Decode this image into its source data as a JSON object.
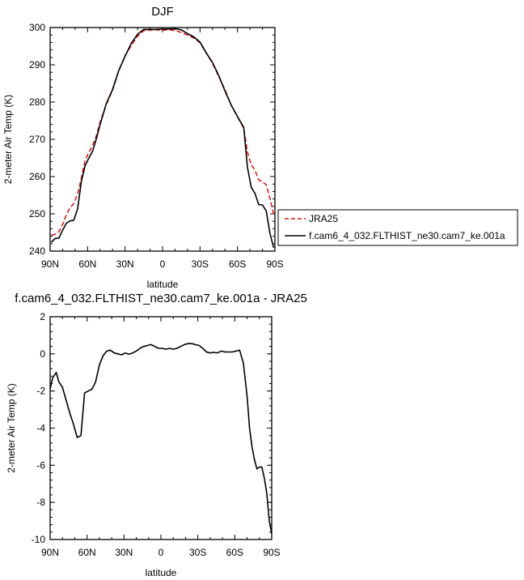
{
  "chart_data": [
    {
      "type": "line",
      "title": "DJF",
      "xlabel": "latitude",
      "ylabel": "2-meter Air Temp (K)",
      "xlim": [
        90,
        -90
      ],
      "ylim": [
        240,
        300
      ],
      "xticks": [
        90,
        60,
        30,
        0,
        -30,
        -60,
        -90
      ],
      "xtick_labels": [
        "90N",
        "60N",
        "30N",
        "0",
        "30S",
        "60S",
        "90S"
      ],
      "yticks": [
        240,
        250,
        260,
        270,
        280,
        290,
        300
      ],
      "ytick_labels": [
        "240",
        "250",
        "260",
        "270",
        "280",
        "290",
        "300"
      ],
      "legend_position": "right",
      "series": [
        {
          "name": "JRA25",
          "color": "#e41a1c",
          "dash": "dashed",
          "x": [
            89,
            86,
            83,
            80,
            77,
            74,
            71,
            68,
            65,
            62,
            59,
            56,
            53,
            50,
            45,
            40,
            35,
            30,
            25,
            20,
            15,
            10,
            5,
            0,
            -5,
            -10,
            -15,
            -20,
            -25,
            -30,
            -35,
            -40,
            -45,
            -50,
            -55,
            -60,
            -65,
            -68,
            -71,
            -74,
            -77,
            -80,
            -83,
            -86,
            -89
          ],
          "y": [
            244.3,
            244.5,
            245.2,
            247.1,
            249.8,
            251.6,
            252.8,
            255.4,
            259.6,
            264.4,
            266.5,
            268.3,
            270.9,
            274.6,
            279.4,
            283.2,
            288.4,
            292.5,
            295.2,
            297.7,
            299.2,
            299.3,
            299.4,
            299.3,
            299.4,
            299.2,
            298.7,
            298.0,
            297.2,
            295.9,
            293.2,
            290.4,
            286.9,
            283.3,
            279.2,
            276.0,
            273.0,
            266.6,
            263.2,
            261.7,
            259.1,
            258.6,
            257.8,
            254.2,
            249.8
          ]
        },
        {
          "name": "f.cam6_4_032.FLTHIST_ne30.cam7_ke.001a",
          "color": "#000000",
          "dash": "solid",
          "x": [
            89,
            86,
            83,
            80,
            77,
            74,
            71,
            68,
            65,
            62,
            59,
            56,
            53,
            50,
            45,
            40,
            35,
            30,
            25,
            20,
            15,
            10,
            5,
            0,
            -5,
            -10,
            -15,
            -20,
            -25,
            -30,
            -35,
            -40,
            -45,
            -50,
            -55,
            -60,
            -65,
            -68,
            -71,
            -74,
            -77,
            -80,
            -83,
            -86,
            -89
          ],
          "y": [
            242.4,
            243.4,
            243.5,
            245.6,
            247.5,
            248.1,
            248.3,
            251.4,
            258.7,
            262.9,
            265.0,
            266.8,
            270.1,
            274.0,
            279.6,
            283.4,
            288.5,
            292.3,
            295.8,
            298.2,
            299.5,
            299.5,
            299.5,
            299.6,
            299.6,
            299.7,
            299.4,
            298.4,
            297.5,
            296.1,
            293.2,
            290.6,
            287.1,
            283.0,
            279.2,
            276.1,
            273.2,
            262.5,
            257.1,
            255.5,
            252.5,
            252.4,
            250.8,
            244.8,
            240.9
          ]
        }
      ]
    },
    {
      "type": "line",
      "title": "f.cam6_4_032.FLTHIST_ne30.cam7_ke.001a - JRA25",
      "xlabel": "latitude",
      "ylabel": "2-meter Air Temp (K)",
      "xlim": [
        90,
        -90
      ],
      "ylim": [
        -10,
        2
      ],
      "xticks": [
        90,
        60,
        30,
        0,
        -30,
        -60,
        -90
      ],
      "xtick_labels": [
        "90N",
        "60N",
        "30N",
        "0",
        "30S",
        "60S",
        "90S"
      ],
      "yticks": [
        -10,
        -8,
        -6,
        -4,
        -2,
        0,
        2
      ],
      "ytick_labels": [
        "-10",
        "-8",
        "-6",
        "-4",
        "-2",
        "0",
        "2"
      ],
      "series": [
        {
          "color": "#000000",
          "dash": "solid",
          "x": [
            90,
            88,
            85,
            83,
            80,
            77,
            74,
            71,
            68,
            65,
            62,
            59,
            56,
            53,
            50,
            47,
            44,
            41,
            38,
            35,
            32,
            29,
            26,
            23,
            20,
            17,
            14,
            11,
            8,
            5,
            2,
            -1,
            -4,
            -7,
            -10,
            -13,
            -16,
            -19,
            -22,
            -25,
            -28,
            -31,
            -34,
            -37,
            -40,
            -43,
            -46,
            -49,
            -52,
            -55,
            -58,
            -61,
            -64,
            -67,
            -70,
            -72,
            -74,
            -76,
            -78,
            -80,
            -82,
            -84,
            -86,
            -88,
            -90
          ],
          "y": [
            -1.9,
            -1.3,
            -1.0,
            -1.5,
            -1.8,
            -2.5,
            -3.2,
            -3.8,
            -4.5,
            -4.4,
            -2.1,
            -2.0,
            -1.9,
            -1.5,
            -0.6,
            -0.1,
            0.15,
            0.2,
            0.05,
            0.0,
            -0.05,
            0.05,
            -0.02,
            0.05,
            0.15,
            0.3,
            0.4,
            0.45,
            0.5,
            0.4,
            0.3,
            0.3,
            0.25,
            0.3,
            0.25,
            0.3,
            0.4,
            0.5,
            0.55,
            0.55,
            0.5,
            0.45,
            0.3,
            0.1,
            0.05,
            0.08,
            0.05,
            0.15,
            0.1,
            0.1,
            0.1,
            0.15,
            0.2,
            -0.5,
            -2.3,
            -4.0,
            -5.0,
            -5.7,
            -6.2,
            -6.1,
            -6.1,
            -6.7,
            -7.5,
            -9.0,
            -9.7
          ]
        }
      ]
    }
  ]
}
